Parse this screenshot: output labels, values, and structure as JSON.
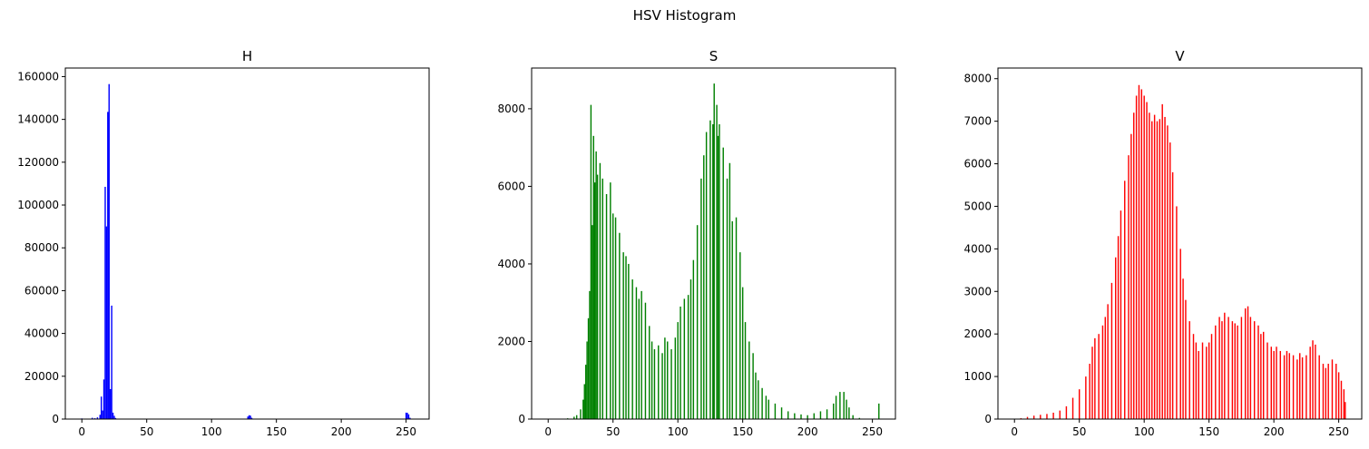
{
  "figure": {
    "suptitle": "HSV Histogram"
  },
  "chart_data": [
    {
      "type": "bar",
      "title": "H",
      "xlabel": "",
      "ylabel": "",
      "xlim": [
        -12.75,
        267.75
      ],
      "ylim": [
        0,
        164000
      ],
      "xticks": [
        0,
        50,
        100,
        150,
        200,
        250
      ],
      "yticks": [
        0,
        20000,
        40000,
        60000,
        80000,
        100000,
        120000,
        140000,
        160000
      ],
      "grid": false,
      "color": "#0000ff",
      "x": [
        0,
        6,
        8,
        10,
        12,
        14,
        15,
        16,
        17,
        18,
        19,
        20,
        21,
        22,
        23,
        24,
        25,
        26,
        27,
        128,
        129,
        130,
        131,
        250,
        251,
        252,
        253
      ],
      "values": [
        300,
        200,
        600,
        400,
        800,
        2000,
        10500,
        4000,
        18500,
        108500,
        90000,
        143500,
        156500,
        14000,
        53000,
        3000,
        1500,
        500,
        200,
        1200,
        1800,
        1600,
        600,
        3000,
        2900,
        2200,
        600
      ]
    },
    {
      "type": "bar",
      "title": "S",
      "xlabel": "",
      "ylabel": "",
      "xlim": [
        -12.75,
        267.75
      ],
      "ylim": [
        0,
        9050
      ],
      "xticks": [
        0,
        50,
        100,
        150,
        200,
        250
      ],
      "yticks": [
        0,
        2000,
        4000,
        6000,
        8000
      ],
      "grid": false,
      "color": "#008000",
      "x": [
        0,
        10,
        15,
        20,
        22,
        25,
        27,
        28,
        29,
        30,
        31,
        32,
        33,
        34,
        35,
        36,
        37,
        38,
        40,
        42,
        45,
        48,
        50,
        52,
        55,
        58,
        60,
        62,
        65,
        68,
        70,
        72,
        75,
        78,
        80,
        82,
        85,
        88,
        90,
        92,
        95,
        98,
        100,
        102,
        105,
        108,
        110,
        112,
        115,
        118,
        120,
        122,
        125,
        127,
        128,
        130,
        131,
        132,
        135,
        138,
        140,
        142,
        145,
        148,
        150,
        152,
        155,
        158,
        160,
        162,
        165,
        168,
        170,
        175,
        180,
        185,
        190,
        195,
        200,
        205,
        210,
        215,
        220,
        222,
        225,
        228,
        230,
        232,
        235,
        240,
        245,
        250,
        253,
        255
      ],
      "values": [
        0,
        10,
        20,
        60,
        100,
        250,
        500,
        900,
        1400,
        2000,
        2600,
        3300,
        8100,
        5000,
        7300,
        6100,
        6900,
        6300,
        6600,
        6200,
        5800,
        6100,
        5300,
        5200,
        4800,
        4300,
        4200,
        4000,
        3600,
        3400,
        3100,
        3300,
        3000,
        2400,
        2000,
        1800,
        1900,
        1700,
        2100,
        2000,
        1800,
        2100,
        2500,
        2900,
        3100,
        3200,
        3600,
        4100,
        5000,
        6200,
        6800,
        7400,
        7700,
        7600,
        8650,
        8100,
        7300,
        7600,
        7000,
        6200,
        6600,
        5100,
        5200,
        4300,
        3400,
        2500,
        2000,
        1700,
        1200,
        1000,
        800,
        600,
        500,
        400,
        300,
        200,
        150,
        120,
        100,
        150,
        200,
        250,
        400,
        600,
        700,
        700,
        500,
        300,
        100,
        30,
        10,
        5,
        10,
        400
      ]
    },
    {
      "type": "bar",
      "title": "V",
      "xlabel": "",
      "ylabel": "",
      "xlim": [
        -12.75,
        267.75
      ],
      "ylim": [
        0,
        8250
      ],
      "xticks": [
        0,
        50,
        100,
        150,
        200,
        250
      ],
      "yticks": [
        0,
        1000,
        2000,
        3000,
        4000,
        5000,
        6000,
        7000,
        8000
      ],
      "grid": false,
      "color": "#ff0000",
      "x": [
        0,
        5,
        10,
        15,
        20,
        25,
        30,
        35,
        40,
        45,
        50,
        55,
        58,
        60,
        62,
        65,
        68,
        70,
        72,
        75,
        78,
        80,
        82,
        85,
        88,
        90,
        92,
        94,
        96,
        98,
        100,
        102,
        104,
        106,
        108,
        110,
        112,
        114,
        116,
        118,
        120,
        122,
        125,
        128,
        130,
        132,
        135,
        138,
        140,
        142,
        145,
        148,
        150,
        152,
        155,
        158,
        160,
        162,
        165,
        168,
        170,
        172,
        175,
        178,
        180,
        182,
        185,
        188,
        190,
        192,
        195,
        198,
        200,
        202,
        205,
        208,
        210,
        212,
        215,
        218,
        220,
        222,
        225,
        228,
        230,
        232,
        235,
        238,
        240,
        242,
        245,
        248,
        250,
        252,
        254,
        255
      ],
      "values": [
        0,
        20,
        50,
        80,
        100,
        120,
        150,
        200,
        300,
        500,
        700,
        1000,
        1300,
        1700,
        1900,
        2000,
        2200,
        2400,
        2700,
        3200,
        3800,
        4300,
        4900,
        5600,
        6200,
        6700,
        7200,
        7600,
        7850,
        7750,
        7600,
        7450,
        7200,
        7000,
        7150,
        7000,
        7050,
        7400,
        7100,
        6900,
        6500,
        5800,
        5000,
        4000,
        3300,
        2800,
        2300,
        2000,
        1800,
        1600,
        1800,
        1700,
        1800,
        2000,
        2200,
        2400,
        2300,
        2500,
        2400,
        2300,
        2250,
        2200,
        2400,
        2600,
        2650,
        2400,
        2300,
        2200,
        2000,
        2050,
        1800,
        1700,
        1600,
        1700,
        1600,
        1500,
        1600,
        1550,
        1500,
        1400,
        1550,
        1450,
        1500,
        1700,
        1850,
        1750,
        1500,
        1300,
        1200,
        1300,
        1400,
        1300,
        1100,
        900,
        700,
        400
      ]
    }
  ]
}
